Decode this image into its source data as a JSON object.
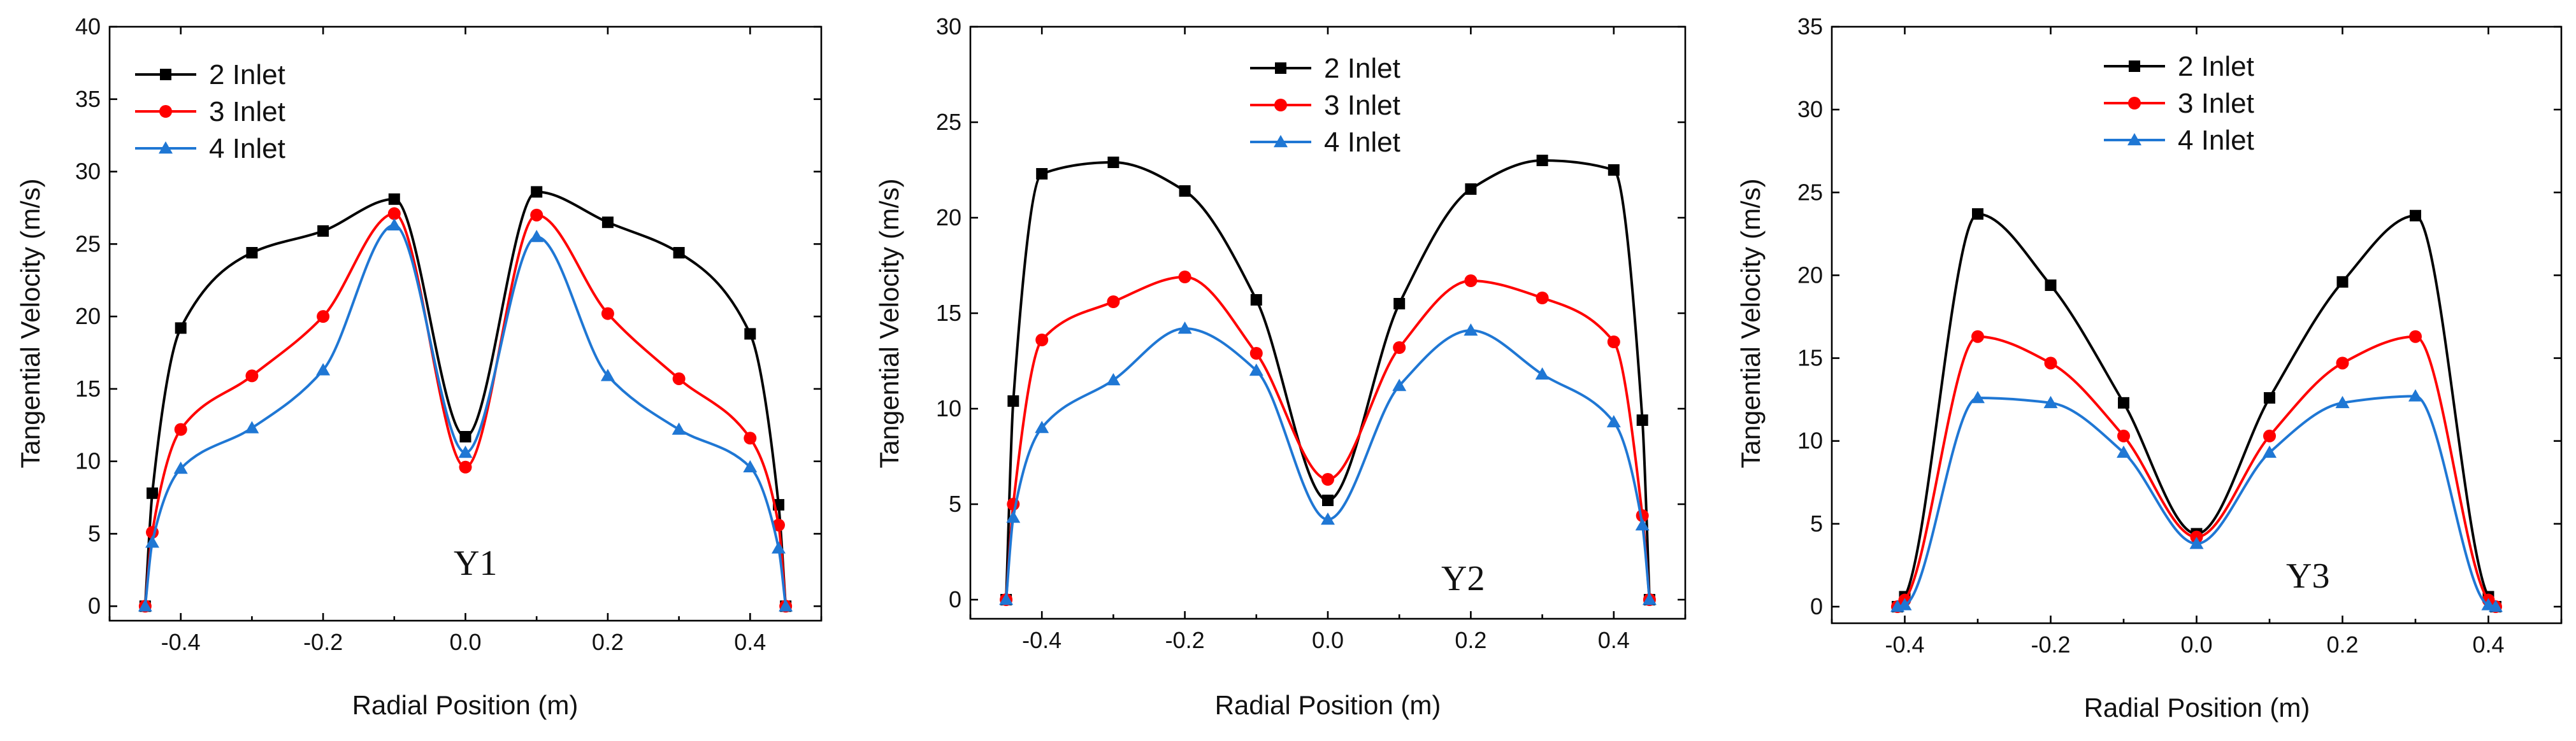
{
  "chart_data": [
    {
      "type": "line",
      "panel_label": "Y1",
      "xlabel": "Radial Position (m)",
      "ylabel": "Tangential Velocity (m/s)",
      "xlim": [
        -0.5,
        0.5
      ],
      "ylim": [
        -1,
        40
      ],
      "xticks": [
        -0.4,
        -0.2,
        0.0,
        0.2,
        0.4
      ],
      "xtick_labels": [
        "-0.4",
        "-0.2",
        "0.0",
        "0.2",
        "0.4"
      ],
      "yticks": [
        0,
        5,
        10,
        15,
        20,
        25,
        30,
        35,
        40
      ],
      "ytick_labels": [
        "0",
        "5",
        "10",
        "15",
        "20",
        "25",
        "30",
        "35",
        "40"
      ],
      "legend_position": "top-left",
      "x": [
        -0.45,
        -0.44,
        -0.4,
        -0.3,
        -0.2,
        -0.1,
        0.0,
        0.1,
        0.2,
        0.3,
        0.4,
        0.44,
        0.45
      ],
      "series": [
        {
          "name": "2 Inlet",
          "color": "#000000",
          "marker": "square",
          "values": [
            0,
            7.8,
            19.2,
            24.4,
            25.9,
            28.1,
            11.7,
            28.6,
            26.5,
            24.4,
            18.8,
            7.0,
            0
          ]
        },
        {
          "name": "3 Inlet",
          "color": "#ff0000",
          "marker": "circle",
          "values": [
            0,
            5.1,
            12.2,
            15.9,
            20.0,
            27.1,
            9.6,
            27.0,
            20.2,
            15.7,
            11.6,
            5.6,
            0
          ]
        },
        {
          "name": "4 Inlet",
          "color": "#1f77d4",
          "marker": "triangle",
          "values": [
            0,
            4.4,
            9.5,
            12.3,
            16.3,
            26.3,
            10.6,
            25.5,
            15.9,
            12.2,
            9.6,
            4.0,
            0
          ]
        }
      ]
    },
    {
      "type": "line",
      "panel_label": "Y2",
      "xlabel": "Radial Position (m)",
      "ylabel": "Tangential Velocity (m/s)",
      "xlim": [
        -0.5,
        0.5
      ],
      "ylim": [
        -1,
        30
      ],
      "xticks": [
        -0.4,
        -0.2,
        0.0,
        0.2,
        0.4
      ],
      "xtick_labels": [
        "-0.4",
        "-0.2",
        "0.0",
        "0.2",
        "0.4"
      ],
      "yticks": [
        0,
        5,
        10,
        15,
        20,
        25,
        30
      ],
      "ytick_labels": [
        "0",
        "5",
        "10",
        "15",
        "20",
        "25",
        "30"
      ],
      "legend_position": "top-center",
      "x": [
        -0.45,
        -0.44,
        -0.4,
        -0.3,
        -0.2,
        -0.1,
        0.0,
        0.1,
        0.2,
        0.3,
        0.4,
        0.44,
        0.45
      ],
      "series": [
        {
          "name": "2 Inlet",
          "color": "#000000",
          "marker": "square",
          "values": [
            0,
            10.4,
            22.3,
            22.9,
            21.4,
            15.7,
            5.2,
            15.5,
            21.5,
            23.0,
            22.5,
            9.4,
            0
          ]
        },
        {
          "name": "3 Inlet",
          "color": "#ff0000",
          "marker": "circle",
          "values": [
            0,
            5.0,
            13.6,
            15.6,
            16.9,
            12.9,
            6.3,
            13.2,
            16.7,
            15.8,
            13.5,
            4.4,
            0
          ]
        },
        {
          "name": "4 Inlet",
          "color": "#1f77d4",
          "marker": "triangle",
          "values": [
            0,
            4.3,
            9.0,
            11.5,
            14.2,
            12.0,
            4.2,
            11.2,
            14.1,
            11.8,
            9.3,
            3.9,
            0
          ]
        }
      ]
    },
    {
      "type": "line",
      "panel_label": "Y3",
      "xlabel": "Radial Position (m)",
      "ylabel": "Tangential Velocity (m/s)",
      "xlim": [
        -0.5,
        0.5
      ],
      "ylim": [
        -1,
        35
      ],
      "xticks": [
        -0.4,
        -0.2,
        0.0,
        0.2,
        0.4
      ],
      "xtick_labels": [
        "-0.4",
        "-0.2",
        "0.0",
        "0.2",
        "0.4"
      ],
      "yticks": [
        0,
        5,
        10,
        15,
        20,
        25,
        30,
        35
      ],
      "ytick_labels": [
        "0",
        "5",
        "10",
        "15",
        "20",
        "25",
        "30",
        "35"
      ],
      "legend_position": "top-center",
      "x": [
        -0.41,
        -0.4,
        -0.3,
        -0.2,
        -0.1,
        0.0,
        0.1,
        0.2,
        0.3,
        0.4,
        0.41
      ],
      "series": [
        {
          "name": "2 Inlet",
          "color": "#000000",
          "marker": "square",
          "values": [
            0,
            0.6,
            23.7,
            19.4,
            12.3,
            4.4,
            12.6,
            19.6,
            23.6,
            0.6,
            0
          ]
        },
        {
          "name": "3 Inlet",
          "color": "#ff0000",
          "marker": "circle",
          "values": [
            0,
            0.4,
            16.3,
            14.7,
            10.3,
            4.2,
            10.3,
            14.7,
            16.3,
            0.4,
            0
          ]
        },
        {
          "name": "4 Inlet",
          "color": "#1f77d4",
          "marker": "triangle",
          "values": [
            0,
            0.1,
            12.6,
            12.3,
            9.3,
            3.8,
            9.3,
            12.3,
            12.7,
            0.1,
            0
          ]
        }
      ]
    }
  ]
}
